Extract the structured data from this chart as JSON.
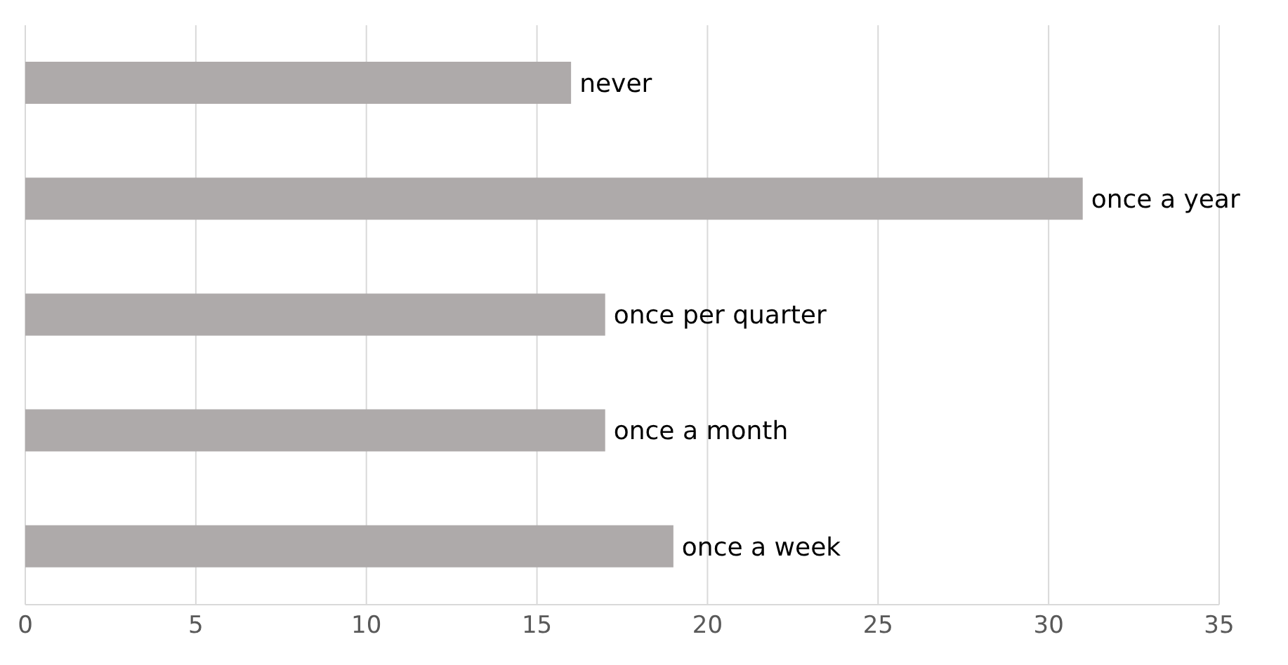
{
  "chart_data": {
    "type": "bar",
    "orientation": "horizontal",
    "categories": [
      "never",
      "once a year",
      "once per quarter",
      "once a month",
      "once a week"
    ],
    "values": [
      16,
      31,
      17,
      17,
      19
    ],
    "color": "#aeaaaa",
    "xlim": [
      0,
      35
    ],
    "xticks": [
      0,
      5,
      10,
      15,
      20,
      25,
      30,
      35
    ],
    "grid": "x"
  }
}
